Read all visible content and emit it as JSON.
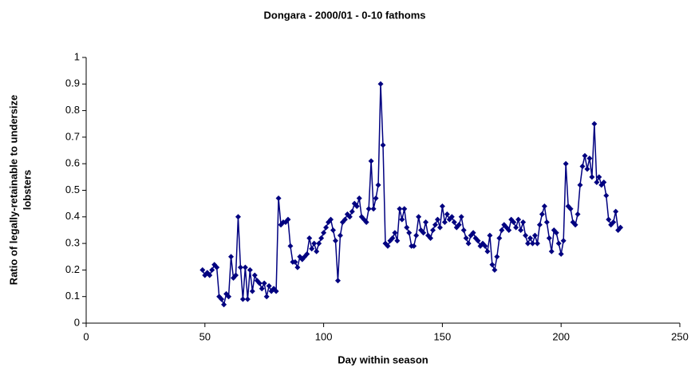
{
  "chart_data": {
    "type": "line",
    "title": "Dongara - 2000/01 - 0-10 fathoms",
    "xlabel": "Day within season",
    "ylabel": [
      "Ratio of legally-retainable to undersize",
      "lobsters"
    ],
    "xlim": [
      0,
      250
    ],
    "xticks": [
      0,
      50,
      100,
      150,
      200,
      250
    ],
    "ylim": [
      0,
      1
    ],
    "yticks": [
      0,
      0.1,
      0.2,
      0.3,
      0.4,
      0.5,
      0.6,
      0.7,
      0.8,
      0.9,
      1
    ],
    "grid": false,
    "series": [
      {
        "color": "#000080",
        "x": [
          49,
          50,
          51,
          52,
          53,
          54,
          55,
          56,
          57,
          58,
          59,
          60,
          61,
          62,
          63,
          64,
          65,
          66,
          67,
          68,
          69,
          70,
          71,
          72,
          73,
          74,
          75,
          76,
          77,
          78,
          79,
          80,
          81,
          82,
          83,
          84,
          85,
          86,
          87,
          88,
          89,
          90,
          91,
          92,
          93,
          94,
          95,
          96,
          97,
          98,
          99,
          100,
          101,
          102,
          103,
          104,
          105,
          106,
          107,
          108,
          109,
          110,
          111,
          112,
          113,
          114,
          115,
          116,
          117,
          118,
          119,
          120,
          121,
          122,
          123,
          124,
          125,
          126,
          127,
          128,
          129,
          130,
          131,
          132,
          133,
          134,
          135,
          136,
          137,
          138,
          139,
          140,
          141,
          142,
          143,
          144,
          145,
          146,
          147,
          148,
          149,
          150,
          151,
          152,
          153,
          154,
          155,
          156,
          157,
          158,
          159,
          160,
          161,
          162,
          163,
          164,
          165,
          166,
          167,
          168,
          169,
          170,
          171,
          172,
          173,
          174,
          175,
          176,
          177,
          178,
          179,
          180,
          181,
          182,
          183,
          184,
          185,
          186,
          187,
          188,
          189,
          190,
          191,
          192,
          193,
          194,
          195,
          196,
          197,
          198,
          199,
          200,
          201,
          202,
          203,
          204,
          205,
          206,
          207,
          208,
          209,
          210,
          211,
          212,
          213,
          214,
          215,
          216,
          217,
          218,
          219,
          220,
          221,
          222,
          223,
          224,
          225
        ],
        "values": [
          0.2,
          0.18,
          0.19,
          0.18,
          0.2,
          0.22,
          0.21,
          0.1,
          0.09,
          0.07,
          0.11,
          0.1,
          0.25,
          0.17,
          0.18,
          0.4,
          0.21,
          0.09,
          0.21,
          0.09,
          0.2,
          0.12,
          0.18,
          0.16,
          0.15,
          0.13,
          0.15,
          0.1,
          0.14,
          0.12,
          0.13,
          0.12,
          0.47,
          0.37,
          0.38,
          0.38,
          0.39,
          0.29,
          0.23,
          0.23,
          0.21,
          0.25,
          0.24,
          0.25,
          0.26,
          0.32,
          0.28,
          0.3,
          0.27,
          0.3,
          0.32,
          0.34,
          0.36,
          0.38,
          0.39,
          0.35,
          0.31,
          0.16,
          0.33,
          0.38,
          0.39,
          0.41,
          0.4,
          0.42,
          0.45,
          0.44,
          0.47,
          0.4,
          0.39,
          0.38,
          0.43,
          0.61,
          0.43,
          0.47,
          0.52,
          0.9,
          0.67,
          0.3,
          0.29,
          0.31,
          0.32,
          0.34,
          0.31,
          0.43,
          0.39,
          0.43,
          0.36,
          0.34,
          0.29,
          0.29,
          0.33,
          0.4,
          0.35,
          0.34,
          0.38,
          0.33,
          0.32,
          0.35,
          0.37,
          0.39,
          0.36,
          0.44,
          0.38,
          0.41,
          0.39,
          0.4,
          0.38,
          0.36,
          0.37,
          0.4,
          0.35,
          0.32,
          0.3,
          0.33,
          0.34,
          0.32,
          0.31,
          0.29,
          0.3,
          0.29,
          0.27,
          0.33,
          0.22,
          0.2,
          0.25,
          0.32,
          0.35,
          0.37,
          0.36,
          0.35,
          0.39,
          0.38,
          0.36,
          0.39,
          0.35,
          0.38,
          0.33,
          0.3,
          0.32,
          0.3,
          0.33,
          0.3,
          0.37,
          0.41,
          0.44,
          0.38,
          0.32,
          0.27,
          0.35,
          0.34,
          0.3,
          0.26,
          0.31,
          0.6,
          0.44,
          0.43,
          0.38,
          0.37,
          0.41,
          0.52,
          0.59,
          0.63,
          0.58,
          0.62,
          0.55,
          0.75,
          0.53,
          0.55,
          0.52,
          0.53,
          0.48,
          0.39,
          0.37,
          0.38,
          0.42,
          0.35,
          0.36
        ]
      }
    ]
  }
}
